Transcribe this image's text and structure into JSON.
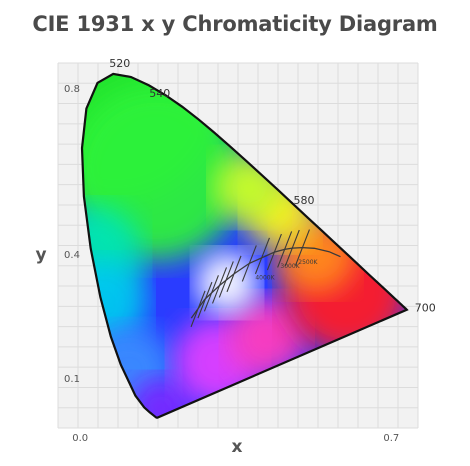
{
  "chart_data": {
    "type": "scatter",
    "title": "CIE 1931 x y Chromaticity Diagram",
    "xlabel": "x",
    "ylabel": "y",
    "xlim": [
      -0.05,
      0.76
    ],
    "ylim": [
      -0.02,
      0.86
    ],
    "x_ticks": [
      {
        "value": 0.0,
        "label": "0.0"
      },
      {
        "value": 0.7,
        "label": "0.7"
      }
    ],
    "y_ticks": [
      {
        "value": 0.8,
        "label": "0.8"
      },
      {
        "value": 0.4,
        "label": "0.4"
      },
      {
        "value": 0.1,
        "label": "0.1"
      }
    ],
    "grid": true,
    "spectral_locus": [
      [
        0.1741,
        0.005
      ],
      [
        0.1738,
        0.0049
      ],
      [
        0.1733,
        0.0048
      ],
      [
        0.1726,
        0.0048
      ],
      [
        0.1714,
        0.0051
      ],
      [
        0.1689,
        0.0069
      ],
      [
        0.1644,
        0.0109
      ],
      [
        0.1566,
        0.0177
      ],
      [
        0.144,
        0.0297
      ],
      [
        0.1241,
        0.0578
      ],
      [
        0.0913,
        0.1327
      ],
      [
        0.0687,
        0.2007
      ],
      [
        0.0454,
        0.295
      ],
      [
        0.0235,
        0.4127
      ],
      [
        0.0082,
        0.5384
      ],
      [
        0.0039,
        0.6548
      ],
      [
        0.0139,
        0.7502
      ],
      [
        0.0389,
        0.812
      ],
      [
        0.0743,
        0.8338
      ],
      [
        0.1142,
        0.8262
      ],
      [
        0.1547,
        0.8059
      ],
      [
        0.1929,
        0.7816
      ],
      [
        0.2296,
        0.7543
      ],
      [
        0.2658,
        0.7243
      ],
      [
        0.3016,
        0.6923
      ],
      [
        0.3373,
        0.6589
      ],
      [
        0.3731,
        0.6245
      ],
      [
        0.4087,
        0.5896
      ],
      [
        0.4441,
        0.5547
      ],
      [
        0.4788,
        0.5202
      ],
      [
        0.5125,
        0.4866
      ],
      [
        0.5448,
        0.4544
      ],
      [
        0.5752,
        0.4242
      ],
      [
        0.6029,
        0.3965
      ],
      [
        0.627,
        0.3725
      ],
      [
        0.6482,
        0.3514
      ],
      [
        0.6658,
        0.334
      ],
      [
        0.6801,
        0.3197
      ],
      [
        0.6915,
        0.3083
      ],
      [
        0.7006,
        0.2993
      ],
      [
        0.7079,
        0.292
      ],
      [
        0.714,
        0.2859
      ],
      [
        0.719,
        0.2809
      ],
      [
        0.723,
        0.277
      ],
      [
        0.726,
        0.274
      ],
      [
        0.7283,
        0.2717
      ],
      [
        0.73,
        0.27
      ],
      [
        0.7311,
        0.2689
      ],
      [
        0.732,
        0.268
      ],
      [
        0.7327,
        0.2673
      ],
      [
        0.7334,
        0.2666
      ],
      [
        0.734,
        0.266
      ],
      [
        0.7344,
        0.2656
      ],
      [
        0.7346,
        0.2654
      ],
      [
        0.7347,
        0.2653
      ]
    ],
    "wavelength_labels": [
      {
        "label": "520",
        "x": 0.0743,
        "y": 0.8338
      },
      {
        "label": "540",
        "x": 0.2296,
        "y": 0.7543
      },
      {
        "label": "580",
        "x": 0.5125,
        "y": 0.4866
      },
      {
        "label": "700",
        "x": 0.7347,
        "y": 0.2653
      }
    ],
    "planckian_locus": [
      [
        0.25,
        0.245
      ],
      [
        0.28,
        0.29
      ],
      [
        0.3134,
        0.3236
      ],
      [
        0.346,
        0.3516
      ],
      [
        0.3805,
        0.3768
      ],
      [
        0.4369,
        0.4041
      ],
      [
        0.4599,
        0.4106
      ],
      [
        0.4771,
        0.4137
      ],
      [
        0.5,
        0.415
      ],
      [
        0.5268,
        0.4133
      ],
      [
        0.56,
        0.405
      ],
      [
        0.5857,
        0.3931
      ]
    ],
    "isotherms": [
      {
        "x": 0.2651,
        "y": 0.2672
      },
      {
        "x": 0.2806,
        "y": 0.2883
      },
      {
        "x": 0.2952,
        "y": 0.3048
      },
      {
        "x": 0.3134,
        "y": 0.3236
      },
      {
        "x": 0.3287,
        "y": 0.3381
      },
      {
        "x": 0.346,
        "y": 0.3516
      },
      {
        "x": 0.3805,
        "y": 0.3768
      },
      {
        "x": 0.41,
        "y": 0.395
      },
      {
        "x": 0.4369,
        "y": 0.4041
      },
      {
        "x": 0.4599,
        "y": 0.4106
      },
      {
        "x": 0.4771,
        "y": 0.4137
      },
      {
        "x": 0.5,
        "y": 0.415
      }
    ],
    "cct_labels": [
      {
        "label": "2500K",
        "x": 0.4771,
        "y": 0.4137
      },
      {
        "label": "3000K",
        "x": 0.4369,
        "y": 0.4041
      },
      {
        "label": "4000K",
        "x": 0.3805,
        "y": 0.3768
      }
    ]
  }
}
